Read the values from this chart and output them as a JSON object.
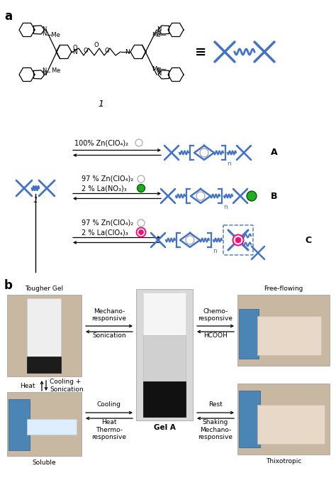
{
  "title_a": "a",
  "title_b": "b",
  "blue_color": "#4472C4",
  "green_color": "#22AA22",
  "pink_color": "#EE1177",
  "bg_color": "#FFFFFF",
  "row1_text1": "100% Zn(ClO₄)₂",
  "row2_text1": "97 % Zn(ClO₄)₂",
  "row2_text2": "2 % La(NO₃)₃",
  "row3_text1": "97 % Zn(ClO₄)₂",
  "row3_text2": "2 % La(ClO₄)₃",
  "label_A": "A",
  "label_B": "B",
  "label_C": "C",
  "label_1_schem": "1",
  "label_1_chem": "1",
  "label_gel_a": "Gel A",
  "label_tougher": "Tougher Gel",
  "label_free": "Free-flowing",
  "label_soluble": "Soluble",
  "label_thixotropic": "Thixotropic",
  "mechano1_top": "Mechano-\nresponsive",
  "mechano1_bot": "Sonication",
  "chemo_top": "Chemo-\nresponsive",
  "chemo_bot": "HCOOH",
  "heat_label": "Heat",
  "cooling_son": "Cooling +\nSonication",
  "cooling": "Cooling",
  "heat2": "Heat",
  "rest": "Rest",
  "shaking": "Shaking",
  "thermo": "Thermo-\nresponsive",
  "mechano2": "Mechano-\nresponsive",
  "equiv": "≡"
}
